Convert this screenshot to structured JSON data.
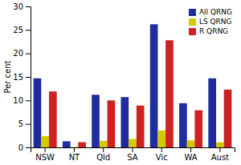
{
  "chart_data": {
    "type": "bar",
    "categories": [
      "NSW",
      "NT",
      "Qld",
      "SA",
      "Vic",
      "WA",
      "Aust"
    ],
    "series": [
      {
        "name": "All QRNG",
        "color": "#1f2d9e",
        "values": [
          14.7,
          1.3,
          11.2,
          10.7,
          26.2,
          9.4,
          14.7
        ]
      },
      {
        "name": "LS QRNG",
        "color": "#d4c900",
        "values": [
          2.4,
          0.1,
          1.4,
          1.8,
          3.6,
          1.5,
          1.1
        ]
      },
      {
        "name": "R QRNG",
        "color": "#cc2222",
        "values": [
          11.9,
          1.1,
          10.0,
          8.9,
          22.8,
          7.9,
          12.3
        ]
      }
    ],
    "ylabel": "Per cent",
    "ylim": [
      0,
      30
    ],
    "yticks": [
      0,
      5,
      10,
      15,
      20,
      25,
      30
    ],
    "grid": false,
    "legend": "top-right"
  }
}
